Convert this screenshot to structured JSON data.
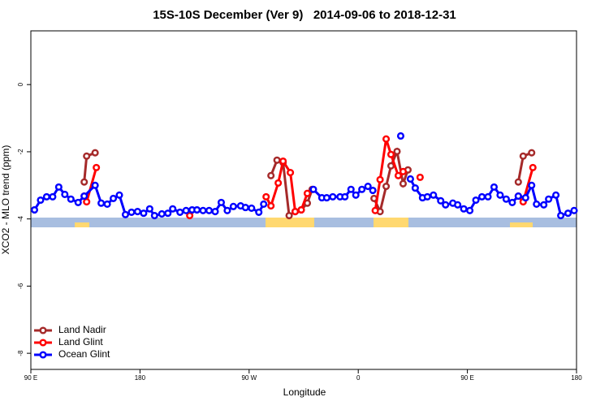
{
  "chart_data": {
    "type": "line",
    "title": "15S-10S December (Ver 9)   2014-09-06 to 2018-12-31",
    "x_label": "Longitude",
    "y_label": "XCO2 - MLO trend (ppm)",
    "xlim": [
      90,
      540
    ],
    "ylim": [
      -8.48,
      1.6
    ],
    "xticks": [
      {
        "value": 90,
        "label": "90 E"
      },
      180,
      {
        "value": 270,
        "label": "90 W"
      },
      {
        "value": 360,
        "label": "0"
      },
      {
        "value": 450,
        "label": "90 E"
      },
      {
        "value": 540,
        "label": "180"
      }
    ],
    "yticks": [
      0,
      -2,
      -4,
      -6,
      -8
    ],
    "legend": "bottom-left",
    "series": [
      {
        "name": "Land Nadir",
        "color": "#a52a2a",
        "x": [
          134,
          136,
          143,
          200,
          288,
          293,
          298,
          303,
          308,
          313,
          318,
          322,
          350,
          373,
          378,
          383,
          387,
          392,
          397,
          401,
          450,
          492,
          496,
          503
        ],
        "values": [
          -2.9,
          -2.13,
          -2.03,
          null,
          -2.71,
          -2.25,
          -2.32,
          -3.9,
          -3.78,
          -3.73,
          -3.53,
          -3.12,
          null,
          -3.39,
          -3.78,
          -3.03,
          -2.42,
          -1.99,
          -2.95,
          -2.54,
          null,
          -2.9,
          -2.13,
          -2.03
        ]
      },
      {
        "name": "Land Glint",
        "color": "#ff0000",
        "x": [
          134,
          136,
          144,
          180,
          221,
          250,
          284,
          288,
          294,
          298,
          304,
          308,
          313,
          318,
          350,
          374,
          378,
          383,
          387,
          393,
          397,
          405,
          411,
          450,
          492,
          496,
          504
        ],
        "values": [
          -3.32,
          -3.49,
          -2.47,
          null,
          -3.9,
          null,
          -3.34,
          -3.61,
          -2.93,
          -2.28,
          -2.62,
          -3.78,
          -3.73,
          -3.24,
          null,
          -3.75,
          -2.83,
          -1.62,
          -2.08,
          -2.71,
          -2.59,
          null,
          -2.76,
          null,
          -3.32,
          -3.49,
          -2.47
        ]
      },
      {
        "name": "Ocean Glint",
        "color": "#0000ff",
        "x": [
          93,
          98,
          103,
          108,
          113,
          118,
          123,
          129,
          134,
          143,
          148,
          153,
          158,
          163,
          168,
          173,
          178,
          183,
          188,
          192,
          198,
          203,
          207,
          213,
          218,
          223,
          227,
          232,
          237,
          242,
          247,
          252,
          257,
          263,
          267,
          272,
          278,
          282,
          300,
          323,
          330,
          334,
          339,
          345,
          349,
          354,
          358,
          363,
          368,
          372,
          384,
          395,
          400,
          403,
          407,
          413,
          417,
          422,
          428,
          432,
          438,
          442,
          447,
          452,
          457,
          462,
          467,
          472,
          477,
          482,
          487,
          492,
          498,
          503,
          507,
          513,
          517,
          523,
          527,
          533,
          538
        ],
        "values": [
          -3.73,
          -3.44,
          -3.34,
          -3.34,
          -3.05,
          -3.27,
          -3.41,
          -3.51,
          -3.32,
          -3.0,
          -3.53,
          -3.56,
          -3.39,
          -3.29,
          -3.87,
          -3.8,
          -3.78,
          -3.83,
          -3.7,
          -3.9,
          -3.85,
          -3.83,
          -3.7,
          -3.8,
          -3.75,
          -3.73,
          -3.73,
          -3.75,
          -3.75,
          -3.78,
          -3.51,
          -3.75,
          -3.63,
          -3.61,
          -3.66,
          -3.68,
          -3.8,
          -3.56,
          null,
          -3.12,
          -3.37,
          -3.37,
          -3.34,
          -3.34,
          -3.34,
          -3.12,
          -3.29,
          -3.12,
          -3.03,
          -3.15,
          null,
          -1.53,
          null,
          -2.81,
          -3.08,
          -3.37,
          -3.34,
          -3.29,
          -3.46,
          -3.58,
          -3.53,
          -3.58,
          -3.7,
          -3.75,
          -3.44,
          -3.34,
          -3.34,
          -3.05,
          -3.29,
          -3.41,
          -3.51,
          -3.32,
          -3.37,
          -3.0,
          -3.56,
          -3.58,
          -3.41,
          -3.29,
          -3.9,
          -3.83,
          -3.75
        ]
      }
    ]
  }
}
